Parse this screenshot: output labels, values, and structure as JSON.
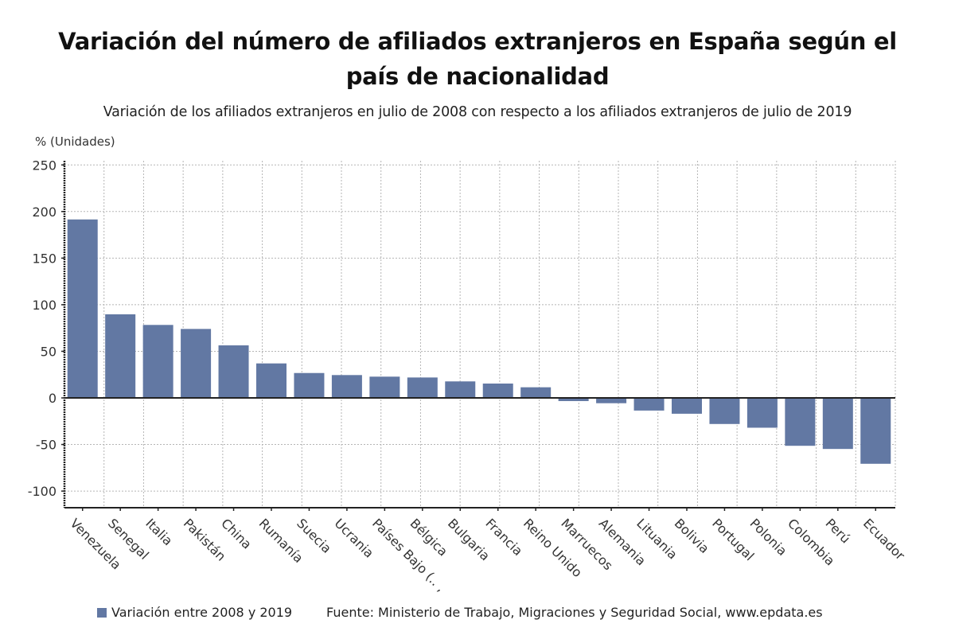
{
  "header": {
    "title_line1": "Variación del número de afiliados extranjeros en España según el",
    "title_line2": "país de nacionalidad",
    "subtitle": "Variación de los afiliados extranjeros en julio de 2008 con respecto a los afiliados extranjeros de julio de 2019"
  },
  "footer": {
    "legend_label": "Variación entre 2008 y 2019",
    "source": "Fuente: Ministerio de Trabajo, Migraciones y Seguridad Social, www.epdata.es"
  },
  "colors": {
    "bar": "#6278a3",
    "axis": "#222222",
    "grid": "#b5b5b5"
  },
  "chart_data": {
    "type": "bar",
    "title": "Variación del número de afiliados extranjeros en España según el país de nacionalidad",
    "subtitle": "Variación de los afiliados extranjeros en julio de 2008 con respecto a los afiliados extranjeros de julio de 2019",
    "xlabel": "",
    "ylabel": "% (Unidades)",
    "ylim": [
      -118,
      253
    ],
    "yticks": [
      250,
      200,
      150,
      100,
      50,
      0,
      -50,
      -100
    ],
    "grid": true,
    "legend_position": "bottom-left",
    "categories": [
      "Venezuela",
      "Senegal",
      "Italia",
      "Pakistán",
      "China",
      "Rumanía",
      "Suecia",
      "Ucrania",
      "Países Bajo (.. ,",
      "Bélgica",
      "Bulgaria",
      "Francia",
      "Reino Unido",
      "Marruecos",
      "Alemania",
      "Lituania",
      "Bolivia",
      "Portugal",
      "Polonia",
      "Colombia",
      "Perú",
      "Ecuador"
    ],
    "series": [
      {
        "name": "Variación entre 2008 y 2019",
        "values": [
          191.5,
          89.7,
          78.3,
          74.0,
          56.4,
          37.0,
          26.7,
          24.5,
          22.8,
          21.9,
          17.7,
          15.4,
          11.4,
          -3.4,
          -5.7,
          -13.6,
          -17.0,
          -28.0,
          -32.0,
          -51.4,
          -54.8,
          -70.7
        ]
      }
    ]
  }
}
